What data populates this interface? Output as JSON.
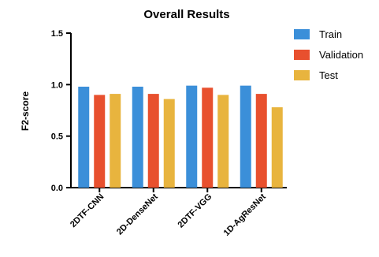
{
  "chart_data": {
    "type": "bar",
    "title": "Overall Results",
    "xlabel": "",
    "ylabel": "F2-score",
    "categories": [
      "2DTF-CNN",
      "2D-DenseNet",
      "2DTF-VGG",
      "1D-AgResNet"
    ],
    "series": [
      {
        "name": "Train",
        "color": "#3b8fd9",
        "values": [
          0.98,
          0.98,
          0.99,
          0.99
        ]
      },
      {
        "name": "Validation",
        "color": "#e8502e",
        "values": [
          0.9,
          0.91,
          0.97,
          0.91
        ]
      },
      {
        "name": "Test",
        "color": "#e8b43e",
        "values": [
          0.91,
          0.86,
          0.9,
          0.78
        ]
      }
    ],
    "ylim": [
      0,
      1.5
    ],
    "yticks": [
      0.0,
      0.5,
      1.0,
      1.5
    ],
    "ytick_labels": [
      "0.0",
      "0.5",
      "1.0",
      "1.5"
    ],
    "grid": false,
    "legend_position": "top-right"
  }
}
